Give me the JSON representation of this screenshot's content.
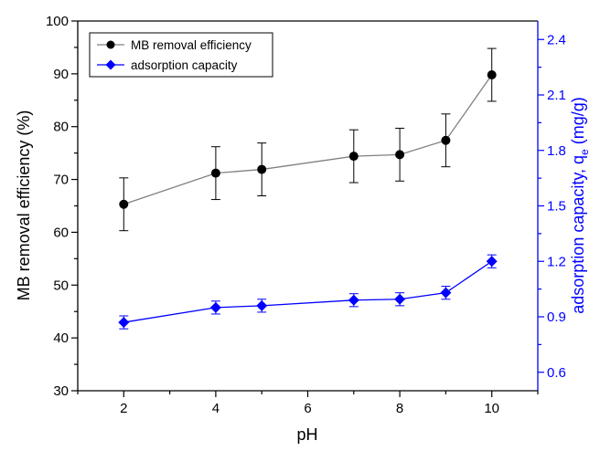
{
  "chart_data": {
    "type": "line",
    "xlabel": "pH",
    "ylabel_left": "MB removal efficiency (%)",
    "ylabel_right_main": "adsorption capacity, q",
    "ylabel_right_sub": "e",
    "ylabel_right_unit": " (mg/g)",
    "xlim": [
      1,
      11
    ],
    "ylim_left": [
      30,
      100
    ],
    "ylim_right": [
      0.5,
      2.5
    ],
    "x_ticks": [
      2,
      4,
      6,
      8,
      10
    ],
    "y_left_ticks": [
      30,
      40,
      50,
      60,
      70,
      80,
      90,
      100
    ],
    "y_right_ticks": [
      "0.6",
      "0.9",
      "1.2",
      "1.5",
      "1.8",
      "2.1",
      "2.4"
    ],
    "legend_position": "top-left",
    "grid": false,
    "series": [
      {
        "name": "MB removal efficiency",
        "axis": "left",
        "color": "#808080",
        "marker": "circle",
        "marker_color": "#000000",
        "x": [
          2,
          4,
          5,
          7,
          8,
          9,
          10
        ],
        "y": [
          65.3,
          71.2,
          71.9,
          74.4,
          74.7,
          77.4,
          89.8
        ],
        "err": [
          5.0,
          5.0,
          5.0,
          5.0,
          5.0,
          5.0,
          5.0
        ]
      },
      {
        "name": "adsorption capacity",
        "axis": "right",
        "color": "#0000ff",
        "marker": "diamond",
        "marker_color": "#0000ff",
        "x": [
          2,
          4,
          5,
          7,
          8,
          9,
          10
        ],
        "y": [
          0.87,
          0.95,
          0.96,
          0.99,
          0.995,
          1.03,
          1.2
        ],
        "err": [
          0.035,
          0.035,
          0.035,
          0.035,
          0.035,
          0.035,
          0.035
        ]
      }
    ]
  }
}
